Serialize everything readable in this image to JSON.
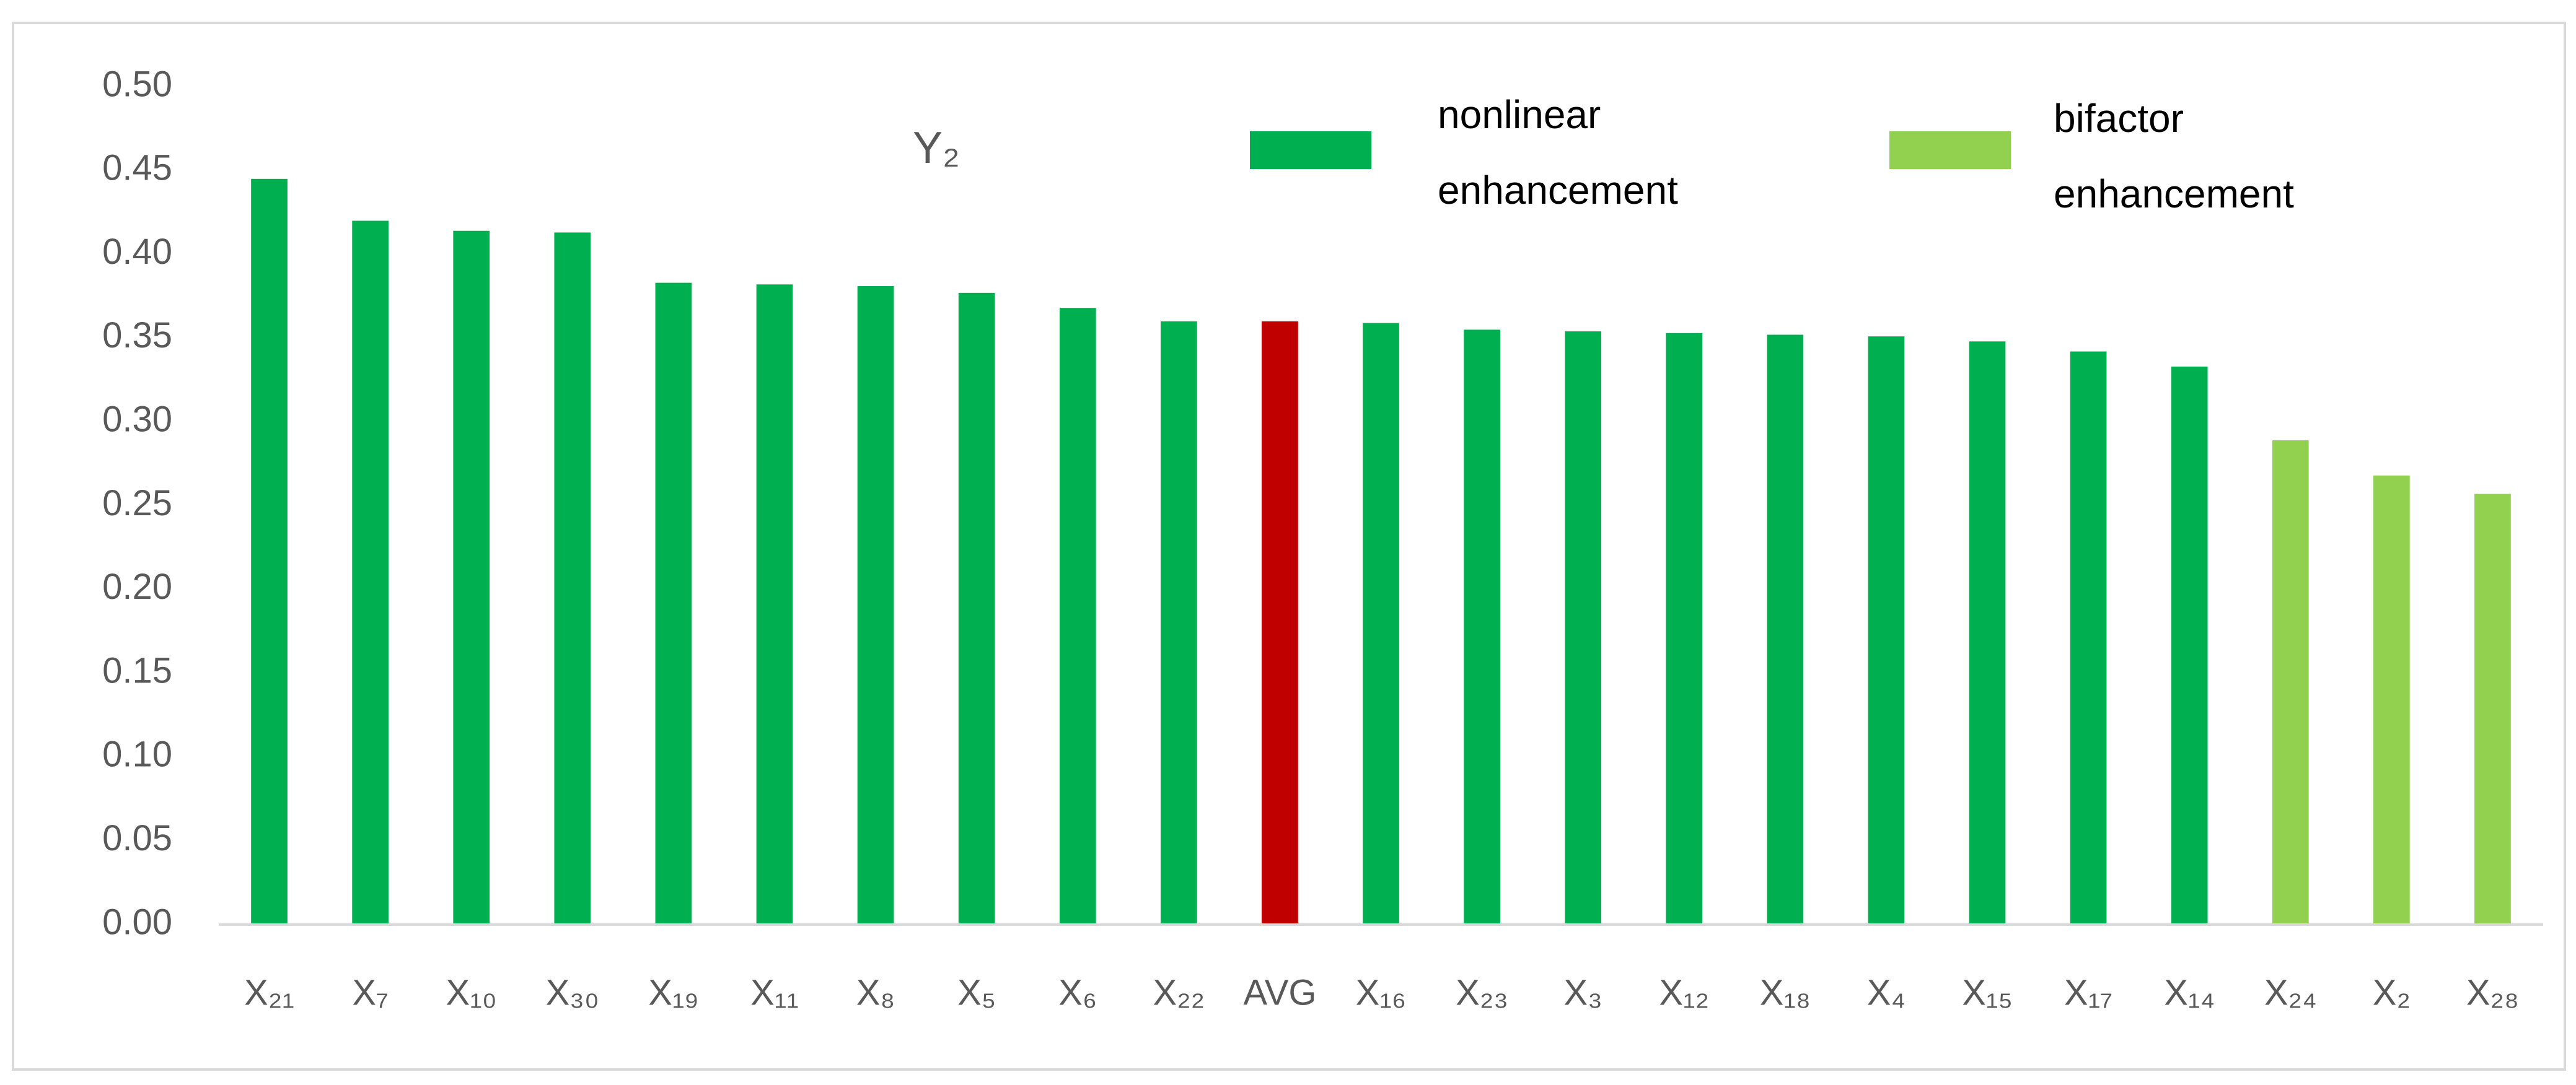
{
  "chart_data": {
    "type": "bar",
    "title": "Y₂",
    "categories": [
      "X₂₁",
      "X₇",
      "X₁₀",
      "X₃₀",
      "X₁₉",
      "X₁₁",
      "X₈",
      "X₅",
      "X₆",
      "X₂₂",
      "AVG",
      "X₁₆",
      "X₂₃",
      "X₃",
      "X₁₂",
      "X₁₈",
      "X₄",
      "X₁₅",
      "X₁₇",
      "X₁₄",
      "X₂₄",
      "X₂",
      "X₂₈"
    ],
    "values": [
      0.445,
      0.42,
      0.414,
      0.413,
      0.383,
      0.382,
      0.381,
      0.377,
      0.368,
      0.36,
      0.36,
      0.359,
      0.355,
      0.354,
      0.353,
      0.352,
      0.351,
      0.348,
      0.342,
      0.333,
      0.289,
      0.268,
      0.257
    ],
    "colors": [
      "#00b050",
      "#00b050",
      "#00b050",
      "#00b050",
      "#00b050",
      "#00b050",
      "#00b050",
      "#00b050",
      "#00b050",
      "#00b050",
      "#c00000",
      "#00b050",
      "#00b050",
      "#00b050",
      "#00b050",
      "#00b050",
      "#00b050",
      "#00b050",
      "#00b050",
      "#00b050",
      "#92d050",
      "#92d050",
      "#92d050"
    ],
    "legend": [
      {
        "name": "nonlinear enhancement",
        "color": "#00b050"
      },
      {
        "name": "bifactor enhancement",
        "color": "#92d050"
      }
    ],
    "ylim": [
      0,
      0.5
    ],
    "yticks": [
      {
        "value": 0,
        "label": "0.00"
      },
      {
        "value": 0.05,
        "label": "0.05"
      },
      {
        "value": 0.1,
        "label": "0.10"
      },
      {
        "value": 0.15,
        "label": "0.15"
      },
      {
        "value": 0.2,
        "label": "0.20"
      },
      {
        "value": 0.25,
        "label": "0.25"
      },
      {
        "value": 0.3,
        "label": "0.30"
      },
      {
        "value": 0.35,
        "label": "0.35"
      },
      {
        "value": 0.4,
        "label": "0.40"
      },
      {
        "value": 0.45,
        "label": "0.45"
      },
      {
        "value": 0.5,
        "label": "0.50"
      }
    ],
    "grid": false
  }
}
